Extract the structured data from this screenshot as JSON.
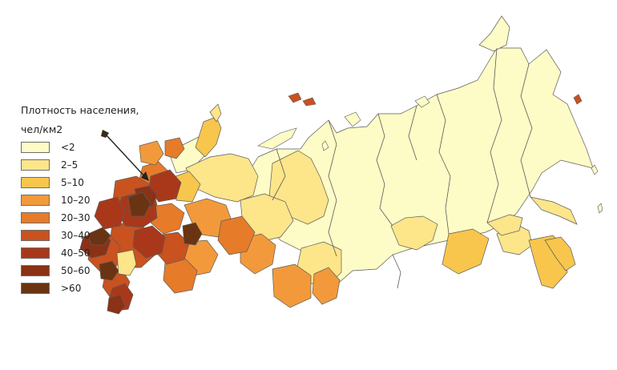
{
  "legend": {
    "title_line1": "Плотность населения,",
    "title_line2": "чел/км2",
    "items": [
      {
        "label": "<2",
        "color": "#fefcc6"
      },
      {
        "label": "2–5",
        "color": "#fde58a"
      },
      {
        "label": "5–10",
        "color": "#f8c64d"
      },
      {
        "label": "10–20",
        "color": "#f29a3b"
      },
      {
        "label": "20–30",
        "color": "#e67b2a"
      },
      {
        "label": "30–40",
        "color": "#c9521f"
      },
      {
        "label": "40–50",
        "color": "#a9381a"
      },
      {
        "label": "50–60",
        "color": "#8a3116"
      },
      {
        "label": ">60",
        "color": "#6a3412"
      }
    ]
  },
  "map": {
    "border_color": "#5a5a5a",
    "arrow_color": "#222222"
  }
}
